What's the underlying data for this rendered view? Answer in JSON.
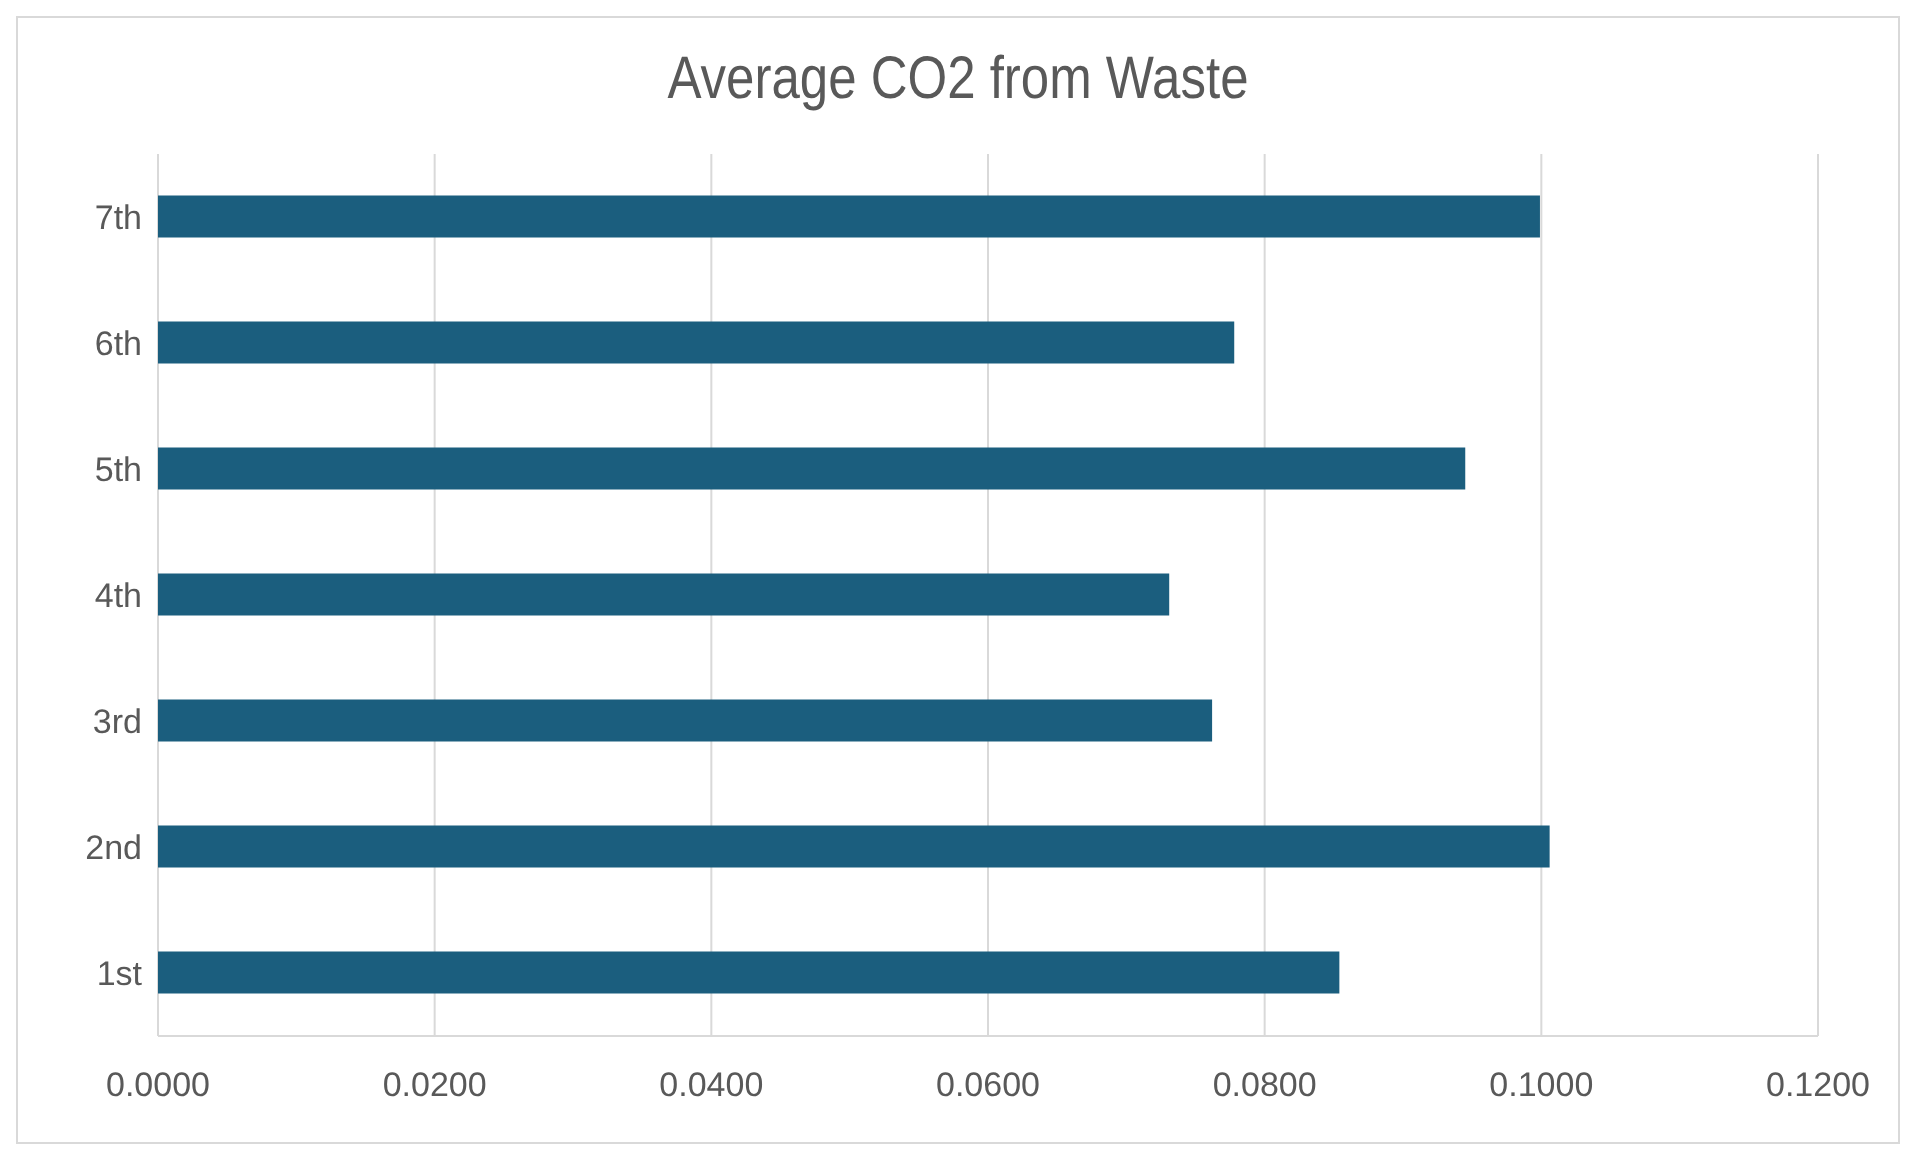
{
  "chart_data": {
    "type": "bar",
    "orientation": "horizontal",
    "title": "Average CO2 from Waste",
    "categories": [
      "7th",
      "6th",
      "5th",
      "4th",
      "3rd",
      "2nd",
      "1st"
    ],
    "values": [
      0.0999,
      0.0778,
      0.0945,
      0.0731,
      0.0762,
      0.1006,
      0.0854
    ],
    "color": "#1b5e7e",
    "xlim": [
      0,
      0.12
    ],
    "xticks": [
      {
        "value": 0,
        "label": "0.0000"
      },
      {
        "value": 0.02,
        "label": "0.0200"
      },
      {
        "value": 0.04,
        "label": "0.0400"
      },
      {
        "value": 0.06,
        "label": "0.0600"
      },
      {
        "value": 0.08,
        "label": "0.0800"
      },
      {
        "value": 0.1,
        "label": "0.1000"
      },
      {
        "value": 0.12,
        "label": "0.1200"
      }
    ],
    "grid": "x",
    "legend": false
  }
}
